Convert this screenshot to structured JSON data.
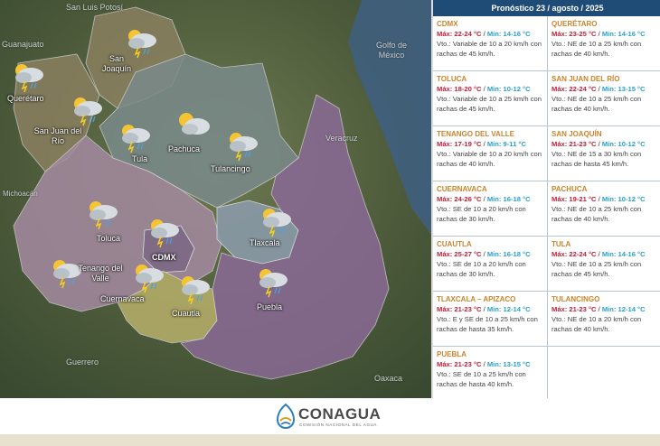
{
  "header": {
    "title": "Pronóstico 23 / agosto / 2025"
  },
  "map": {
    "regions": [
      {
        "name": "San Luis Potosí"
      },
      {
        "name": "Guanajuato"
      },
      {
        "name": "Golfo de México"
      },
      {
        "name": "Veracruz"
      },
      {
        "name": "Michoacán"
      },
      {
        "name": "Guerrero"
      },
      {
        "name": "Oaxaca"
      }
    ],
    "cities": [
      {
        "name": "San Joaquín",
        "icon": "storm-cloud-icon"
      },
      {
        "name": "Querétaro",
        "icon": "storm-cloud-icon"
      },
      {
        "name": "San Juan del Río",
        "icon": "storm-cloud-icon"
      },
      {
        "name": "Tula",
        "icon": "storm-cloud-icon"
      },
      {
        "name": "Pachuca",
        "icon": "partly-cloudy-icon"
      },
      {
        "name": "Tulancingo",
        "icon": "storm-cloud-icon"
      },
      {
        "name": "Toluca",
        "icon": "storm-cloud-icon"
      },
      {
        "name": "CDMX",
        "icon": "storm-cloud-icon"
      },
      {
        "name": "Tlaxcala",
        "icon": "storm-cloud-icon"
      },
      {
        "name": "Tenango del Valle",
        "icon": "storm-cloud-icon"
      },
      {
        "name": "Cuernavaca",
        "icon": "storm-cloud-icon"
      },
      {
        "name": "Cuautla",
        "icon": "storm-cloud-icon"
      },
      {
        "name": "Puebla",
        "icon": "storm-cloud-icon"
      }
    ],
    "colors": {
      "queretaro": "#8a8060",
      "hidalgo": "#7a8a8a",
      "mexico": "#a48aa0",
      "puebla": "#8a6a96",
      "morelos": "#b8b06a",
      "tlaxcala": "#8a9aa8"
    }
  },
  "forecast": [
    {
      "city": "CDMX",
      "max": "Máx: 22-24 °C",
      "sep": " / ",
      "min": "Min: 14-16 °C",
      "wind": "Vto.: Variable de 10 a 20 km/h con rachas de 45 km/h."
    },
    {
      "city": "QUERÉTARO",
      "max": "Máx: 23-25 °C",
      "sep": " / ",
      "min": "Min: 14-16 °C",
      "wind": "Vto.: NE de 10 a 25 km/h con rachas de 40 km/h."
    },
    {
      "city": "TOLUCA",
      "max": "Máx: 18-20 °C",
      "sep": " / ",
      "min": "Min: 10-12 °C",
      "wind": "Vto.: Variable de 10 a 25 km/h con rachas de 45 km/h."
    },
    {
      "city": "SAN JUAN DEL RÍO",
      "max": "Máx: 22-24 °C",
      "sep": " / ",
      "min": "Min: 13-15 °C",
      "wind": "Vto.: NE de 10 a 25 km/h con rachas de 40 km/h."
    },
    {
      "city": "TENANGO DEL VALLE",
      "max": "Máx: 17-19 °C",
      "sep": " / ",
      "min": "Min: 9-11 °C",
      "wind": "Vto.: Variable de 10 a 20 km/h con rachas de 40 km/h."
    },
    {
      "city": "SAN JOAQUÍN",
      "max": "Máx: 21-23 °C",
      "sep": " / ",
      "min": "Min: 10-12 °C",
      "wind": "Vto.: NE de 15 a 30 km/h con rachas de hasta 45 km/h."
    },
    {
      "city": "CUERNAVACA",
      "max": "Máx: 24-26 °C",
      "sep": " / ",
      "min": "Min: 16-18 °C",
      "wind": "Vto.: SE de 10 a 20 km/h con rachas de 30 km/h."
    },
    {
      "city": "PACHUCA",
      "max": "Máx: 19-21 °C",
      "sep": " / ",
      "min": "Min: 10-12 °C",
      "wind": "Vto.: NE de 10 a 25 km/h con rachas de 40 km/h."
    },
    {
      "city": "CUAUTLA",
      "max": "Máx: 25-27 °C",
      "sep": " / ",
      "min": "Min: 16-18 °C",
      "wind": "Vto.: SE de 10 a 20 km/h con rachas de 30 km/h."
    },
    {
      "city": "TULA",
      "max": "Máx: 22-24 °C",
      "sep": " / ",
      "min": "Min: 14-16 °C",
      "wind": "Vto.: NE de 10 a 25 km/h con rachas de 45 km/h."
    },
    {
      "city": "TLAXCALA – APIZACO",
      "max": "Máx: 21-23 °C",
      "sep": " / ",
      "min": "Min: 12-14 °C",
      "wind": "Vto.: E y SE de 10 a 25 km/h con rachas de hasta 35 km/h."
    },
    {
      "city": "TULANCINGO",
      "max": "Máx: 21-23 °C",
      "sep": " / ",
      "min": "Min: 12-14 °C",
      "wind": "Vto.: NE de 10 a 20 km/h con rachas de 40 km/h."
    },
    {
      "city": "PUEBLA",
      "max": "Máx: 21-23 °C",
      "sep": " / ",
      "min": "Min: 13-15 °C",
      "wind": "Vto.: SE de 10 a 25 km/h con rachas de hasta 40 km/h."
    }
  ],
  "footer": {
    "logo_text": "CONAGUA",
    "logo_sub": "COMISIÓN NACIONAL DEL AGUA"
  }
}
